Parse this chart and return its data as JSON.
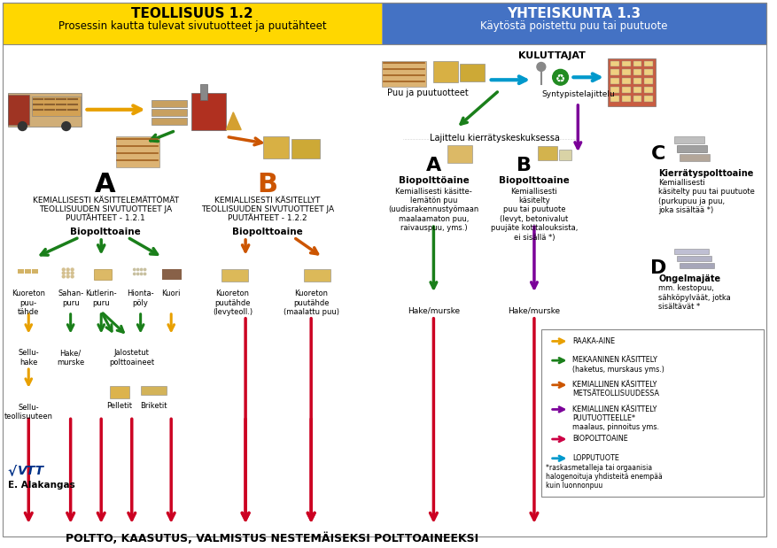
{
  "title_left": "TEOLLISUUS 1.2",
  "subtitle_left": "Prosessin kautta tulevat sivutuotteet ja puutähteet",
  "title_right": "YHTEISKUNTA 1.3",
  "subtitle_right": "Käytöstä poistettu puu tai puutuote",
  "title_left_bg": "#FFD700",
  "title_right_bg": "#4472C4",
  "bottom_text": "POLTTO, KAASUTUS, VALMISTUS NESTEMÄISEKSI POLTTOAINEEKSI",
  "section_A_left_text": "KEMIALLISESTI KÄSITTELEMÄTTÖMÄT\nTEOLLISUUDEN SIVUTUOTTEET JA\nPUUTÄHTEET - 1.2.1",
  "section_A_left_sub": "Biopolttoaine",
  "section_B_text": "KEMIALLISESTI KÄSITELLYT\nTEOLLISUUDEN SIVUTUOTTEET JA\nPUUTÄHTEET - 1.2.2",
  "section_B_sub": "Biopolttoaine",
  "section_A_right_sub": "Kemiallisesti käsitte-\nlemätön puu\n(uudisrakennustyömaan\nmaalaamaton puu,\nraivauspuu, yms.)",
  "section_B_right_sub": "Kemiallisesti\nkäsitelty\npuu tai puutuote\n(levyt, betonivalut\npuujäte kotitalouksista,\nei sisällä *)",
  "section_C_sub": "Kemiallisesti\nkäsitelty puu tai puutuote\n(purkupuu ja puu,\njoka sisältää *)",
  "section_D_sub": "mm. kestopuu,\nsähköpylväät, jotka\nsisältävät *",
  "items_A_left": [
    "Kuoreton\npuu-\ntähde",
    "Sahan-\npuru",
    "Kutlerin-\npuru",
    "Hionta-\npöly",
    "Kuori"
  ],
  "items_B": [
    "Kuoreton\npuutähde\n(levyteoll.)",
    "Kuoreton\npuutähde\n(maalattu puu)"
  ],
  "legend_items": [
    {
      "color": "#E8A000",
      "label": "RAAKA-AINE"
    },
    {
      "color": "#1A7F1A",
      "label": "MEKAANINEN KÄSITTELY\n(haketus, murskaus yms.)"
    },
    {
      "color": "#CC5500",
      "label": "KEMIALLINEN KÄSITTELY\nMETSÄTEOLLISUUDESSA"
    },
    {
      "color": "#7B0099",
      "label": "KEMIALLINEN KÄSITTELY\nPUUTUOTTEELLE*\nmaalaus, pinnoitus yms."
    },
    {
      "color": "#CC0044",
      "label": "BIOPOLTTOAINE"
    },
    {
      "color": "#0099CC",
      "label": "LOPPUTUOTE"
    }
  ],
  "footnote": "*raskasmetalleja tai orgaanisia\nhalogenoituja yhdisteitä enempää\nkuin luonnonpuu",
  "bg_color": "#FFFFFF"
}
